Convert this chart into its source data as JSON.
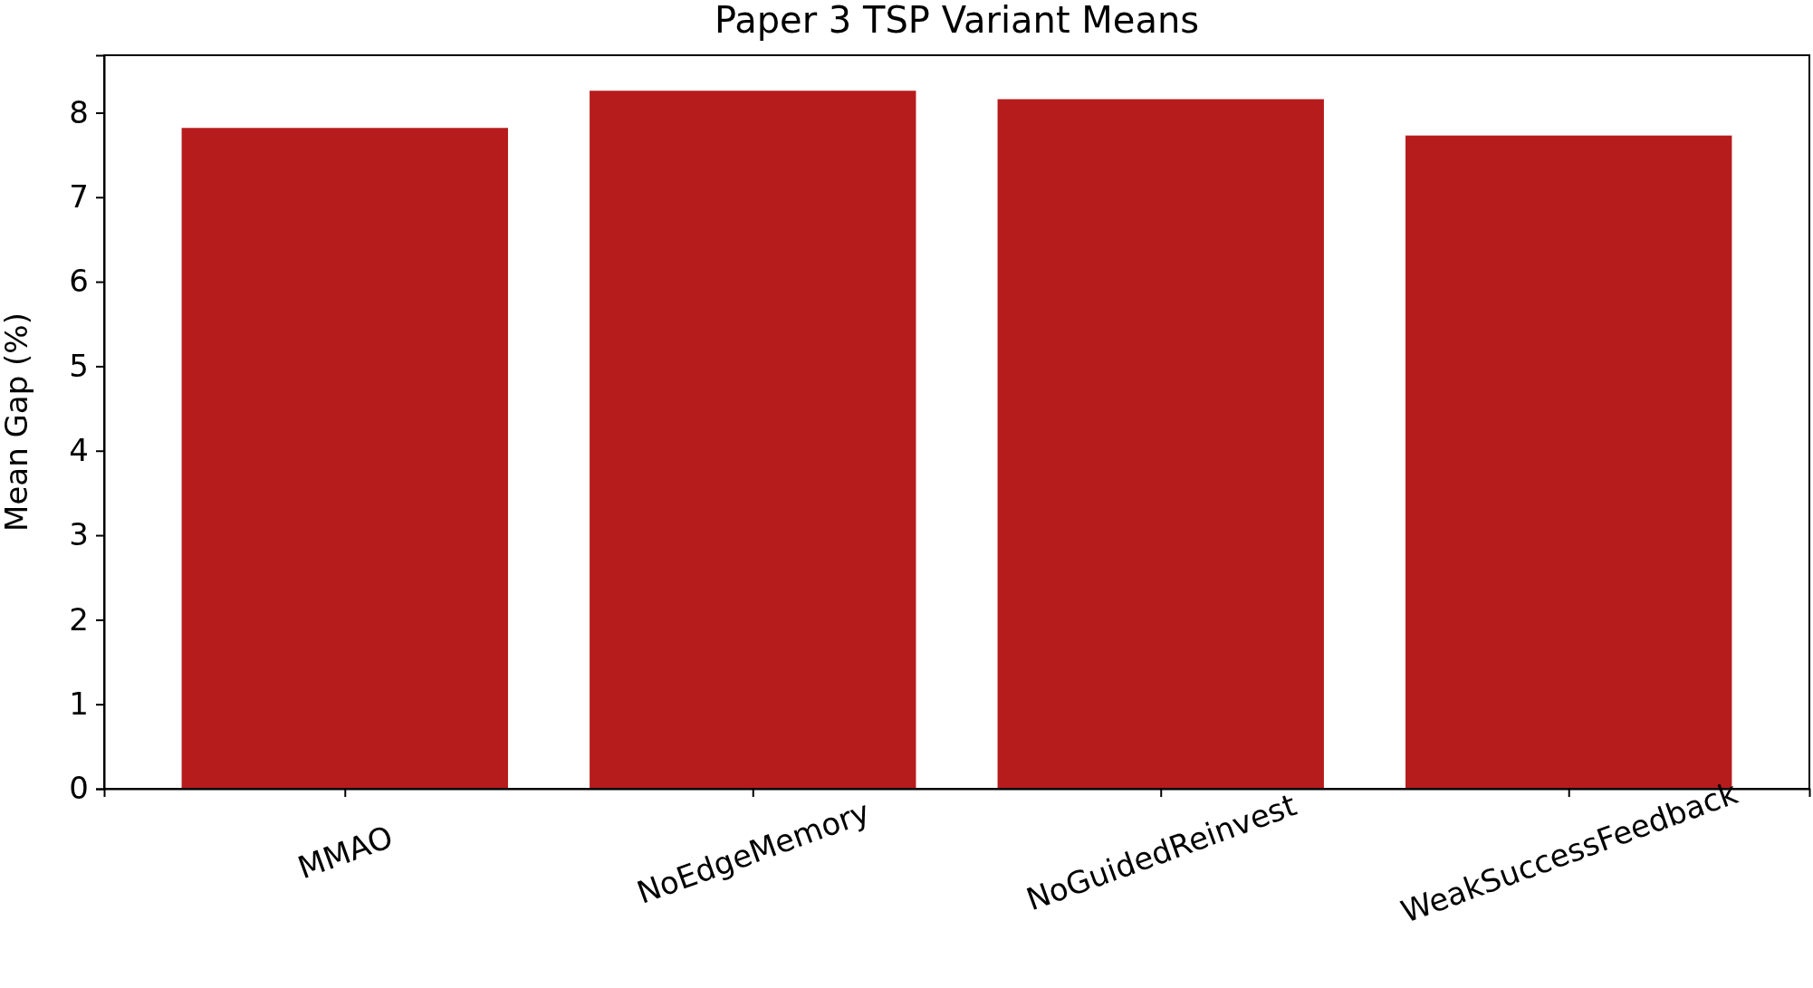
{
  "chart_data": {
    "type": "bar",
    "title": "Paper 3 TSP Variant Means",
    "ylabel": "Mean Gap (%)",
    "categories": [
      "MMAO",
      "NoEdgeMemory",
      "NoGuidedReinvest",
      "WeakSuccessFeedback"
    ],
    "series": [
      {
        "color": "#b71c1c",
        "values": [
          7.82,
          8.26,
          8.16,
          7.73
        ]
      }
    ],
    "ylim": [
      0,
      8.68
    ],
    "yticks": [
      0,
      1,
      2,
      3,
      4,
      5,
      6,
      7,
      8
    ],
    "grid": false
  }
}
